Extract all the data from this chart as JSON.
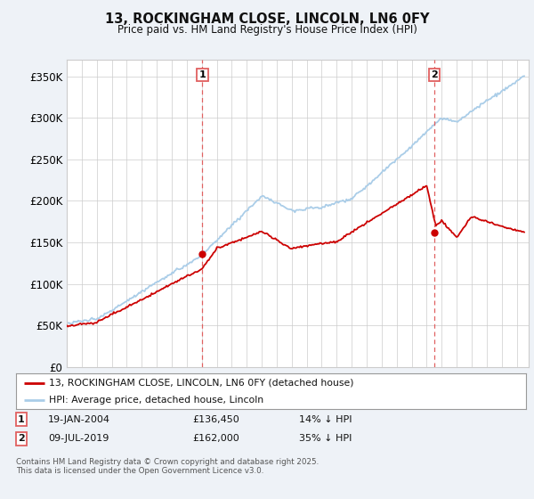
{
  "title": "13, ROCKINGHAM CLOSE, LINCOLN, LN6 0FY",
  "subtitle": "Price paid vs. HM Land Registry's House Price Index (HPI)",
  "ylabel_ticks": [
    "£0",
    "£50K",
    "£100K",
    "£150K",
    "£200K",
    "£250K",
    "£300K",
    "£350K"
  ],
  "ylim": [
    0,
    370000
  ],
  "xlim_start": 1995.0,
  "xlim_end": 2025.8,
  "marker1_x": 2004.05,
  "marker1_y": 136450,
  "marker1_date": "19-JAN-2004",
  "marker1_price": "£136,450",
  "marker1_hpi": "14% ↓ HPI",
  "marker2_x": 2019.52,
  "marker2_y": 162000,
  "marker2_date": "09-JUL-2019",
  "marker2_price": "£162,000",
  "marker2_hpi": "35% ↓ HPI",
  "hpi_line_color": "#aacde8",
  "price_line_color": "#cc0000",
  "marker_dline_color": "#e06060",
  "background_color": "#eef2f7",
  "plot_bg_color": "#ffffff",
  "grid_color": "#cccccc",
  "legend_label1": "13, ROCKINGHAM CLOSE, LINCOLN, LN6 0FY (detached house)",
  "legend_label2": "HPI: Average price, detached house, Lincoln",
  "footer": "Contains HM Land Registry data © Crown copyright and database right 2025.\nThis data is licensed under the Open Government Licence v3.0."
}
